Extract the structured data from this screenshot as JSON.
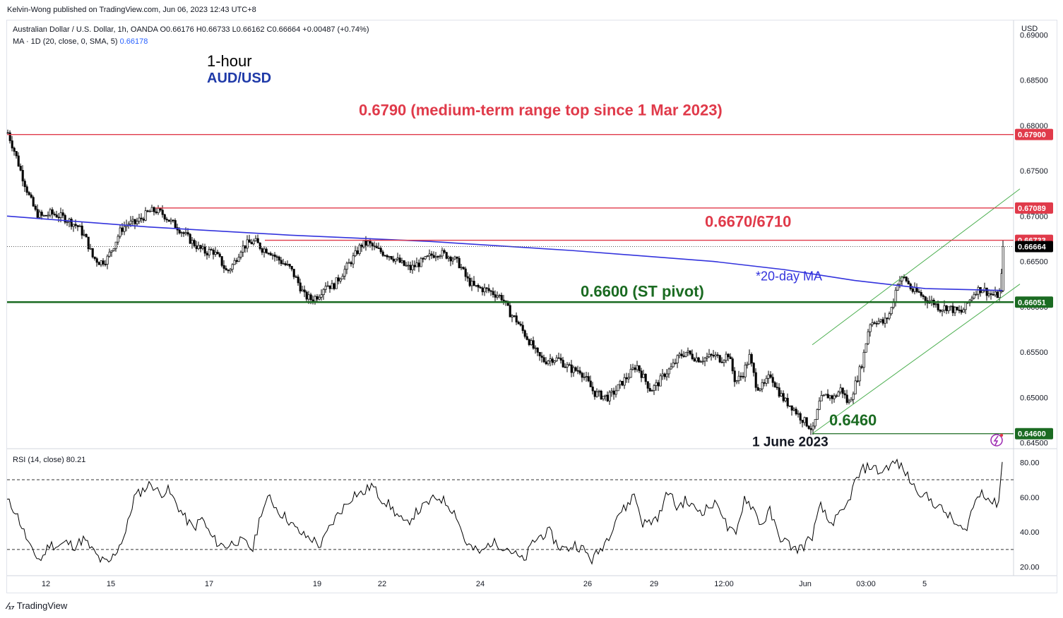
{
  "publisher": "Kelvin-Wong published on TradingView.com, Jun 06, 2023 12:43 UTC+8",
  "legend": {
    "symbol_line": "Australian Dollar / U.S. Dollar, 1h, OANDA  O0.66176  H0.66733  L0.66162  C0.66664  +0.00487 (+0.74%)",
    "ma_line": "MA · 1D (20, close, 0, SMA, 5)",
    "ma_value": "0.66178"
  },
  "rsi_legend": "RSI (14, close)  80.21",
  "titles": {
    "timeframe": "1-hour",
    "pair": "AUD/USD"
  },
  "logo": "TradingView",
  "colors": {
    "up": "#000000",
    "down": "#000000",
    "ma": "#3333dd",
    "resistance": "#e03a4a",
    "support": "#1b6b22",
    "channel": "#4caf50",
    "label_red": "#e03a4a",
    "label_green": "#1b6b22",
    "label_dark": "#131722",
    "rsi": "#000000"
  },
  "chart_data": [
    {
      "type": "candlestick",
      "currency": "USD",
      "ylim": [
        0.6445,
        0.6915
      ],
      "y_ticks": [
        "0.69000",
        "0.68500",
        "0.68000",
        "0.67500",
        "0.67000",
        "0.66500",
        "0.66000",
        "0.65500",
        "0.65000",
        "0.64500"
      ],
      "x_ticks": [
        "12",
        "15",
        "17",
        "19",
        "22",
        "24",
        "26",
        "29",
        "12:00",
        "Jun",
        "03:00",
        "5"
      ],
      "price_path": [
        [
          0,
          0.6792
        ],
        [
          10,
          0.677
        ],
        [
          20,
          0.6745
        ],
        [
          30,
          0.6722
        ],
        [
          40,
          0.6703
        ],
        [
          50,
          0.6699
        ],
        [
          60,
          0.6703
        ],
        [
          70,
          0.6701
        ],
        [
          80,
          0.6698
        ],
        [
          90,
          0.6693
        ],
        [
          100,
          0.6688
        ],
        [
          110,
          0.6676
        ],
        [
          120,
          0.6655
        ],
        [
          130,
          0.6649
        ],
        [
          140,
          0.6652
        ],
        [
          150,
          0.6668
        ],
        [
          160,
          0.6685
        ],
        [
          170,
          0.6692
        ],
        [
          180,
          0.6692
        ],
        [
          190,
          0.6698
        ],
        [
          200,
          0.6705
        ],
        [
          210,
          0.6706
        ],
        [
          220,
          0.6702
        ],
        [
          230,
          0.6694
        ],
        [
          240,
          0.6688
        ],
        [
          250,
          0.668
        ],
        [
          260,
          0.6672
        ],
        [
          270,
          0.6665
        ],
        [
          280,
          0.666
        ],
        [
          290,
          0.6662
        ],
        [
          300,
          0.6652
        ],
        [
          310,
          0.6638
        ],
        [
          320,
          0.6648
        ],
        [
          330,
          0.6664
        ],
        [
          340,
          0.667
        ],
        [
          350,
          0.6672
        ],
        [
          360,
          0.6664
        ],
        [
          370,
          0.6662
        ],
        [
          380,
          0.6654
        ],
        [
          390,
          0.6648
        ],
        [
          400,
          0.6642
        ],
        [
          410,
          0.6628
        ],
        [
          420,
          0.6612
        ],
        [
          430,
          0.6608
        ],
        [
          440,
          0.6613
        ],
        [
          450,
          0.6625
        ],
        [
          460,
          0.6622
        ],
        [
          470,
          0.6633
        ],
        [
          480,
          0.6644
        ],
        [
          490,
          0.6655
        ],
        [
          500,
          0.6668
        ],
        [
          510,
          0.667
        ],
        [
          520,
          0.6664
        ],
        [
          530,
          0.666
        ],
        [
          540,
          0.6657
        ],
        [
          550,
          0.6652
        ],
        [
          560,
          0.6646
        ],
        [
          570,
          0.6642
        ],
        [
          580,
          0.6647
        ],
        [
          590,
          0.6651
        ],
        [
          600,
          0.6657
        ],
        [
          610,
          0.666
        ],
        [
          620,
          0.6657
        ],
        [
          630,
          0.6654
        ],
        [
          640,
          0.6646
        ],
        [
          650,
          0.663
        ],
        [
          660,
          0.6622
        ],
        [
          670,
          0.662
        ],
        [
          680,
          0.6618
        ],
        [
          690,
          0.6614
        ],
        [
          700,
          0.661
        ],
        [
          710,
          0.6594
        ],
        [
          720,
          0.6585
        ],
        [
          730,
          0.6572
        ],
        [
          740,
          0.656
        ],
        [
          750,
          0.6546
        ],
        [
          760,
          0.654
        ],
        [
          770,
          0.6543
        ],
        [
          780,
          0.6542
        ],
        [
          790,
          0.6535
        ],
        [
          800,
          0.653
        ],
        [
          810,
          0.653
        ],
        [
          820,
          0.6518
        ],
        [
          830,
          0.6505
        ],
        [
          840,
          0.6502
        ],
        [
          850,
          0.65
        ],
        [
          860,
          0.6507
        ],
        [
          870,
          0.6517
        ],
        [
          880,
          0.6525
        ],
        [
          890,
          0.6536
        ],
        [
          900,
          0.6522
        ],
        [
          910,
          0.6508
        ],
        [
          920,
          0.6515
        ],
        [
          930,
          0.6526
        ],
        [
          940,
          0.6533
        ],
        [
          950,
          0.6545
        ],
        [
          960,
          0.655
        ],
        [
          970,
          0.6545
        ],
        [
          980,
          0.6542
        ],
        [
          990,
          0.6544
        ],
        [
          1000,
          0.6546
        ],
        [
          1010,
          0.6542
        ],
        [
          1020,
          0.6548
        ],
        [
          1030,
          0.6517
        ],
        [
          1040,
          0.6525
        ],
        [
          1050,
          0.6545
        ],
        [
          1060,
          0.6512
        ],
        [
          1070,
          0.6512
        ],
        [
          1080,
          0.6525
        ],
        [
          1090,
          0.6508
        ],
        [
          1100,
          0.6496
        ],
        [
          1110,
          0.649
        ],
        [
          1120,
          0.648
        ],
        [
          1130,
          0.6472
        ],
        [
          1140,
          0.6464
        ],
        [
          1150,
          0.6497
        ],
        [
          1160,
          0.6502
        ],
        [
          1170,
          0.65
        ],
        [
          1180,
          0.651
        ],
        [
          1190,
          0.6492
        ],
        [
          1200,
          0.6515
        ],
        [
          1210,
          0.654
        ],
        [
          1220,
          0.6582
        ],
        [
          1230,
          0.6585
        ],
        [
          1240,
          0.6582
        ],
        [
          1250,
          0.6595
        ],
        [
          1260,
          0.6628
        ],
        [
          1270,
          0.6632
        ],
        [
          1280,
          0.6618
        ],
        [
          1290,
          0.6615
        ],
        [
          1300,
          0.6608
        ],
        [
          1310,
          0.6605
        ],
        [
          1320,
          0.6598
        ],
        [
          1330,
          0.66
        ],
        [
          1340,
          0.6596
        ],
        [
          1350,
          0.6594
        ],
        [
          1360,
          0.6605
        ],
        [
          1370,
          0.6618
        ],
        [
          1380,
          0.662
        ],
        [
          1390,
          0.6614
        ],
        [
          1400,
          0.6612
        ],
        [
          1406,
          0.6617
        ],
        [
          1409,
          0.6666
        ]
      ],
      "ma_20day": [
        [
          0,
          0.67
        ],
        [
          200,
          0.6688
        ],
        [
          400,
          0.6679
        ],
        [
          600,
          0.6672
        ],
        [
          800,
          0.6662
        ],
        [
          1000,
          0.665
        ],
        [
          1100,
          0.6641
        ],
        [
          1200,
          0.6629
        ],
        [
          1300,
          0.662
        ],
        [
          1409,
          0.6618
        ]
      ],
      "channel_upper": [
        [
          1140,
          0.6558
        ],
        [
          1434,
          0.673
        ]
      ],
      "channel_lower": [
        [
          1140,
          0.646
        ],
        [
          1434,
          0.6625
        ]
      ],
      "levels": [
        {
          "value": 0.679,
          "label": "0.67900",
          "kind": "resistance",
          "start": 0
        },
        {
          "value": 0.67089,
          "label": "0.67089",
          "kind": "resistance",
          "start": 210
        },
        {
          "value": 0.66733,
          "label": "0.66733",
          "kind": "resistance",
          "start": 365
        },
        {
          "value": 0.66051,
          "label": "0.66051",
          "kind": "support",
          "start": 0
        },
        {
          "value": 0.646,
          "label": "0.64600",
          "kind": "support_thin",
          "start": 1140
        }
      ],
      "current_price": {
        "value": 0.66664,
        "label": "0.66664"
      },
      "annotations": [
        {
          "text": "0.6790 (medium-term range top since 1 Mar 2023)",
          "x": 508,
          "y": 0.6811,
          "color": "label_red",
          "size": 22
        },
        {
          "text": "0.6670/6710",
          "x": 998,
          "y": 0.6688,
          "color": "label_red",
          "size": 22
        },
        {
          "text": "*20-day MA",
          "x": 1070,
          "y": 0.6629,
          "color": "ma",
          "size": 18
        },
        {
          "text": "0.6600 (ST pivot)",
          "x": 822,
          "y": 0.6611,
          "color": "label_green",
          "size": 22
        },
        {
          "text": "0.6460",
          "x": 1174,
          "y": 0.6469,
          "color": "label_green",
          "size": 22
        },
        {
          "text": "1 June 2023",
          "x": 1065,
          "y": 0.6446,
          "color": "label_dark",
          "size": 19
        }
      ]
    },
    {
      "type": "line",
      "name": "RSI (14, close)",
      "ylim": [
        15,
        87
      ],
      "y_ticks": [
        "80.00",
        "60.00",
        "40.00",
        "20.00"
      ],
      "bands": [
        70,
        30
      ],
      "current": 80.21,
      "values": [
        [
          0,
          58
        ],
        [
          12,
          52
        ],
        [
          24,
          40
        ],
        [
          36,
          28
        ],
        [
          48,
          24
        ],
        [
          60,
          33
        ],
        [
          72,
          32
        ],
        [
          84,
          34
        ],
        [
          96,
          32
        ],
        [
          108,
          36
        ],
        [
          120,
          30
        ],
        [
          132,
          24
        ],
        [
          144,
          22
        ],
        [
          156,
          30
        ],
        [
          168,
          40
        ],
        [
          180,
          60
        ],
        [
          192,
          64
        ],
        [
          204,
          68
        ],
        [
          216,
          62
        ],
        [
          228,
          64
        ],
        [
          240,
          56
        ],
        [
          252,
          48
        ],
        [
          264,
          42
        ],
        [
          276,
          48
        ],
        [
          288,
          38
        ],
        [
          300,
          33
        ],
        [
          312,
          32
        ],
        [
          324,
          35
        ],
        [
          336,
          34
        ],
        [
          348,
          30
        ],
        [
          360,
          52
        ],
        [
          372,
          60
        ],
        [
          384,
          52
        ],
        [
          396,
          48
        ],
        [
          408,
          42
        ],
        [
          420,
          38
        ],
        [
          432,
          36
        ],
        [
          444,
          32
        ],
        [
          456,
          42
        ],
        [
          468,
          50
        ],
        [
          480,
          56
        ],
        [
          492,
          62
        ],
        [
          504,
          62
        ],
        [
          516,
          67
        ],
        [
          528,
          60
        ],
        [
          540,
          56
        ],
        [
          552,
          50
        ],
        [
          564,
          44
        ],
        [
          576,
          50
        ],
        [
          588,
          54
        ],
        [
          600,
          58
        ],
        [
          612,
          60
        ],
        [
          624,
          56
        ],
        [
          636,
          50
        ],
        [
          648,
          35
        ],
        [
          660,
          30
        ],
        [
          672,
          28
        ],
        [
          684,
          34
        ],
        [
          696,
          33
        ],
        [
          708,
          31
        ],
        [
          720,
          27
        ],
        [
          732,
          23
        ],
        [
          744,
          34
        ],
        [
          756,
          38
        ],
        [
          768,
          40
        ],
        [
          780,
          32
        ],
        [
          792,
          30
        ],
        [
          804,
          33
        ],
        [
          816,
          30
        ],
        [
          828,
          24
        ],
        [
          840,
          30
        ],
        [
          852,
          38
        ],
        [
          864,
          50
        ],
        [
          876,
          54
        ],
        [
          888,
          62
        ],
        [
          900,
          45
        ],
        [
          912,
          46
        ],
        [
          924,
          50
        ],
        [
          936,
          64
        ],
        [
          948,
          54
        ],
        [
          960,
          58
        ],
        [
          972,
          54
        ],
        [
          984,
          52
        ],
        [
          996,
          55
        ],
        [
          1008,
          56
        ],
        [
          1020,
          42
        ],
        [
          1032,
          38
        ],
        [
          1044,
          60
        ],
        [
          1056,
          54
        ],
        [
          1068,
          44
        ],
        [
          1080,
          52
        ],
        [
          1092,
          38
        ],
        [
          1104,
          34
        ],
        [
          1116,
          30
        ],
        [
          1128,
          32
        ],
        [
          1140,
          38
        ],
        [
          1152,
          55
        ],
        [
          1164,
          45
        ],
        [
          1176,
          48
        ],
        [
          1188,
          54
        ],
        [
          1200,
          68
        ],
        [
          1212,
          76
        ],
        [
          1224,
          78
        ],
        [
          1236,
          74
        ],
        [
          1248,
          78
        ],
        [
          1260,
          80
        ],
        [
          1272,
          74
        ],
        [
          1284,
          66
        ],
        [
          1296,
          62
        ],
        [
          1308,
          58
        ],
        [
          1320,
          54
        ],
        [
          1332,
          50
        ],
        [
          1344,
          44
        ],
        [
          1356,
          40
        ],
        [
          1368,
          55
        ],
        [
          1380,
          64
        ],
        [
          1392,
          58
        ],
        [
          1400,
          56
        ],
        [
          1406,
          60
        ],
        [
          1409,
          80
        ]
      ]
    }
  ]
}
